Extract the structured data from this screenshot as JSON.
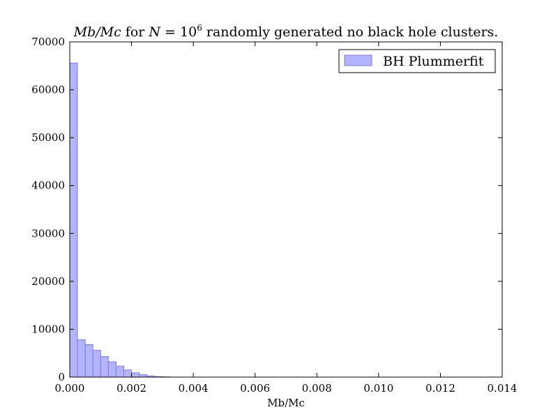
{
  "chart_data": {
    "type": "bar",
    "title": {
      "math_1": "Mb/Mc",
      "mid": " for ",
      "math_2": "N",
      "eq": " = ",
      "base": "10",
      "exp": "6",
      "rest": " randomly generated no black hole clusters."
    },
    "xlabel": "Mb/Mc",
    "ylabel": "",
    "xlim": [
      0,
      0.014
    ],
    "ylim": [
      0,
      70000
    ],
    "x_ticks": [
      "0.000",
      "0.002",
      "0.004",
      "0.006",
      "0.008",
      "0.010",
      "0.012",
      "0.014"
    ],
    "y_ticks": [
      "0",
      "10000",
      "20000",
      "30000",
      "40000",
      "50000",
      "60000",
      "70000"
    ],
    "grid": false,
    "legend_position": "top-right",
    "series": [
      {
        "name": "BH Plummerfit",
        "color": "#b3b3ff",
        "edge_color": "#7f7fcc",
        "bin_width": 0.00025,
        "bin_starts": [
          0.0,
          0.00025,
          0.0005,
          0.00075,
          0.001,
          0.00125,
          0.0015,
          0.00175,
          0.002,
          0.00225,
          0.0025,
          0.00275,
          0.003
        ],
        "counts": [
          65600,
          7800,
          6800,
          5600,
          4300,
          3200,
          2300,
          1500,
          900,
          500,
          250,
          120,
          50
        ]
      }
    ]
  }
}
